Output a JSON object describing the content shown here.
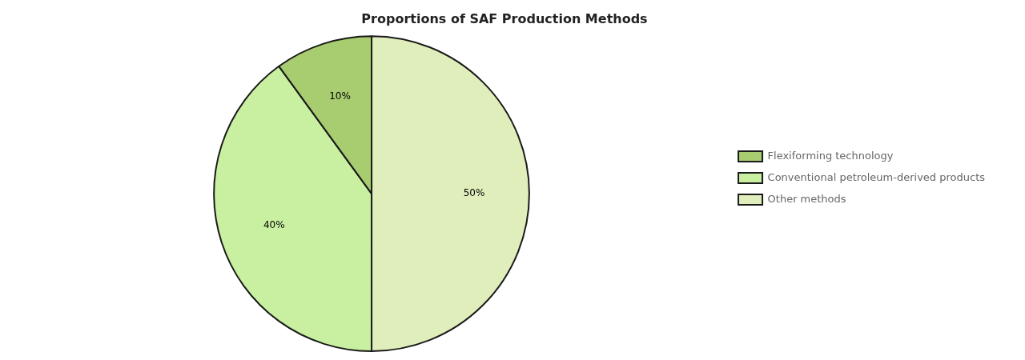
{
  "chart_data": {
    "type": "pie",
    "title": "Proportions of SAF Production Methods",
    "categories": [
      "Other methods",
      "Conventional petroleum-derived products",
      "Flexiforming technology"
    ],
    "values": [
      50,
      40,
      10
    ],
    "value_labels": [
      "50%",
      "40%",
      "10%"
    ],
    "colors": [
      "#e0eebc",
      "#c8f0a0",
      "#a8cc70"
    ],
    "data_labels": true,
    "legend": "right"
  }
}
